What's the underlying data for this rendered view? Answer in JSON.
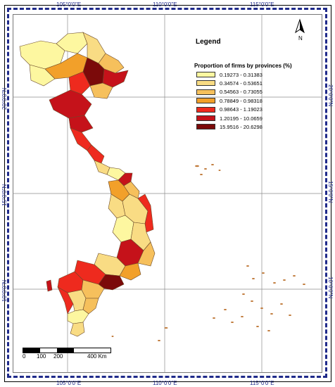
{
  "axes": {
    "top_ticks": [
      "105°0'0\"E",
      "110°0'0\"E",
      "115°0'0\"E"
    ],
    "bottom_ticks": [
      "105°0'0\"E",
      "110°0'0\"E",
      "115°0'0\"E"
    ],
    "left_ticks": [
      "20°0'0\"N",
      "15°0'0\"N",
      "10°0'0\"N"
    ],
    "right_ticks": [
      "20°0'0\"N",
      "15°0'0\"N",
      "10°0'0\"N"
    ]
  },
  "legend": {
    "title": "Legend",
    "heading": "Proportion of firms by provinces (%)",
    "classes": [
      {
        "label": "0.19273 - 0.31383",
        "color": "#fdf7a0"
      },
      {
        "label": "0.34574 - 0.53651",
        "color": "#f9dc84"
      },
      {
        "label": "0.54563 - 0.73055",
        "color": "#f6c05c"
      },
      {
        "label": "0.78849 - 0.98318",
        "color": "#f2a02a"
      },
      {
        "label": "0.98643 - 1.19023",
        "color": "#ee2a1e"
      },
      {
        "label": "1.20195 - 10.0659",
        "color": "#c5121a"
      },
      {
        "label": "15.9516 - 20.6298",
        "color": "#7b0a0a"
      }
    ]
  },
  "north_arrow": {
    "label": "N"
  },
  "scale": {
    "ticks": [
      "0",
      "100",
      "200",
      "400 Km"
    ]
  }
}
